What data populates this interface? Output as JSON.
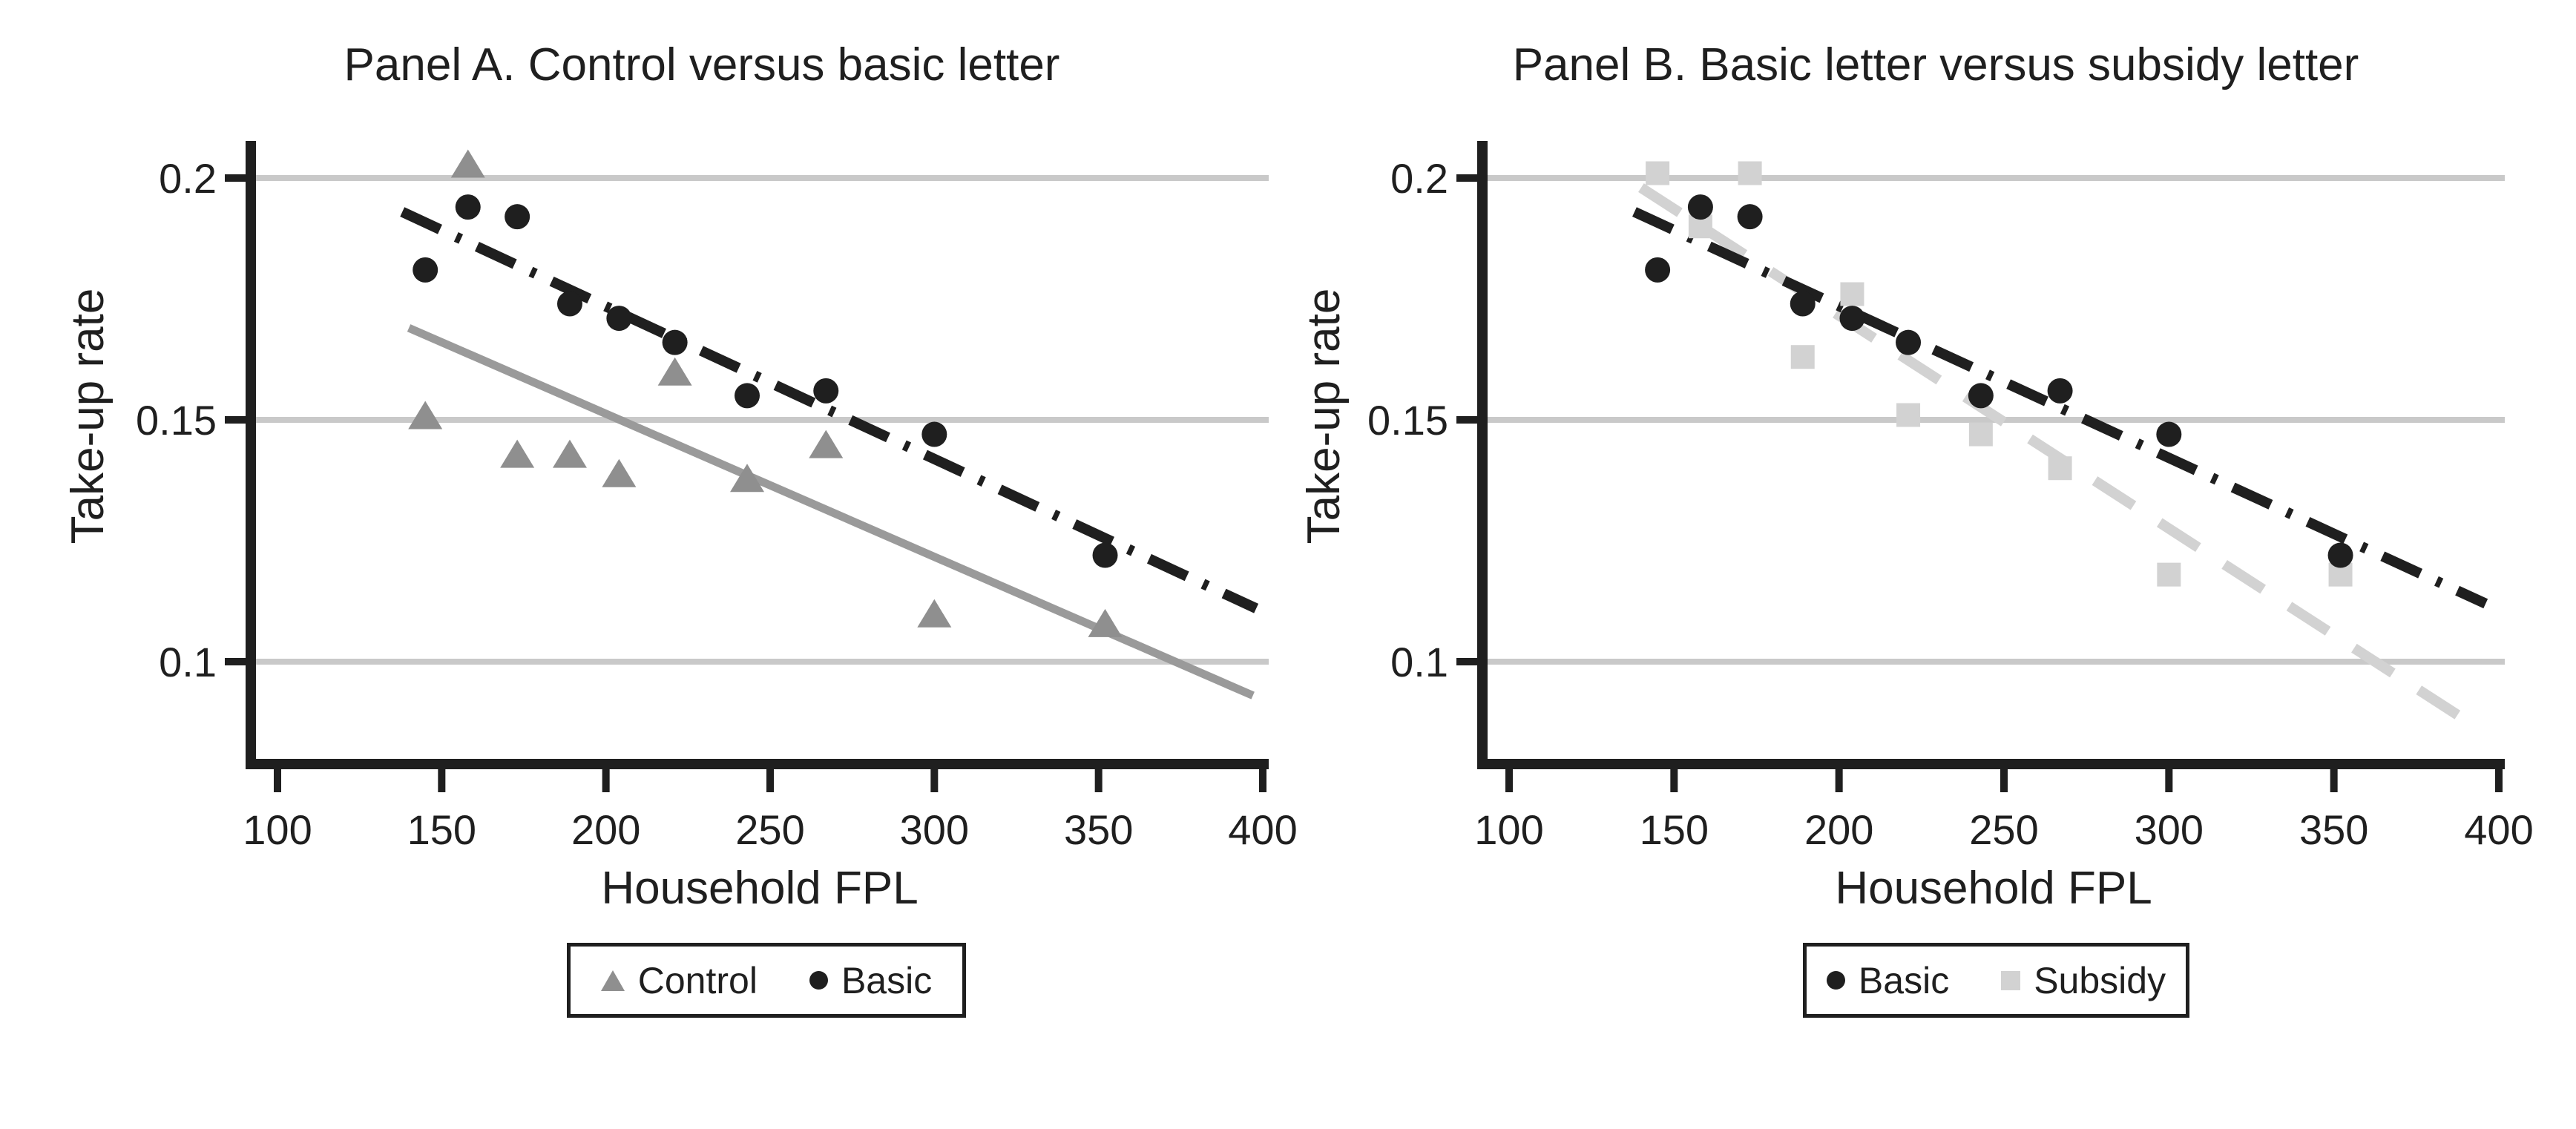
{
  "figure": {
    "background": "#ffffff",
    "text_color": "#1f1f1f",
    "gridline_color": "#c9c9c9"
  },
  "chart_data": [
    {
      "type": "scatter",
      "panel": "A",
      "title": "Panel A. Control versus basic letter",
      "xlabel": "Household FPL",
      "ylabel": "Take-up rate",
      "x_ticks": [
        100,
        150,
        200,
        250,
        300,
        350,
        400
      ],
      "x_tick_labels": [
        "100",
        "150",
        "200",
        "250",
        "300",
        "350",
        "400"
      ],
      "y_ticks": [
        0.2,
        0.15,
        0.1
      ],
      "y_tick_labels": [
        "0.2",
        "0.15",
        "0.1"
      ],
      "xlim": [
        92,
        402
      ],
      "ylim": [
        0.079,
        0.208
      ],
      "grid": "horizontal",
      "legend_position": "bottom-center",
      "x": [
        145,
        158,
        173,
        189,
        204,
        221,
        243,
        267,
        300,
        352
      ],
      "series": [
        {
          "name": "Control",
          "marker": "triangle",
          "color": "#8f8f8f",
          "values": [
            0.151,
            0.203,
            0.143,
            0.143,
            0.139,
            0.16,
            0.138,
            0.145,
            0.11,
            0.108
          ]
        },
        {
          "name": "Basic",
          "marker": "circle",
          "color": "#1f1f1f",
          "values": [
            0.181,
            0.194,
            0.192,
            0.174,
            0.171,
            0.166,
            0.155,
            0.156,
            0.147,
            0.122
          ]
        }
      ],
      "fit_lines": [
        {
          "series": "Control",
          "style": "solid",
          "color": "#9a9a9a",
          "x": [
            140,
            397
          ],
          "y": [
            0.169,
            0.093
          ]
        },
        {
          "series": "Basic",
          "style": "dashdot",
          "color": "#1f1f1f",
          "x": [
            138,
            398
          ],
          "y": [
            0.193,
            0.111
          ]
        }
      ],
      "legend": [
        {
          "label": "Control",
          "marker": "triangle",
          "color": "#8f8f8f"
        },
        {
          "label": "Basic",
          "marker": "circle",
          "color": "#1f1f1f"
        }
      ]
    },
    {
      "type": "scatter",
      "panel": "B",
      "title": "Panel B. Basic letter versus subsidy letter",
      "xlabel": "Household FPL",
      "ylabel": "Take-up rate",
      "x_ticks": [
        100,
        150,
        200,
        250,
        300,
        350,
        400
      ],
      "x_tick_labels": [
        "100",
        "150",
        "200",
        "250",
        "300",
        "350",
        "400"
      ],
      "y_ticks": [
        0.2,
        0.15,
        0.1
      ],
      "y_tick_labels": [
        "0.2",
        "0.15",
        "0.1"
      ],
      "xlim": [
        92,
        402
      ],
      "ylim": [
        0.079,
        0.208
      ],
      "grid": "horizontal",
      "legend_position": "bottom-center",
      "x": [
        145,
        158,
        173,
        189,
        204,
        221,
        243,
        267,
        300,
        352
      ],
      "series": [
        {
          "name": "Subsidy",
          "marker": "square",
          "color": "#d2d2d2",
          "values": [
            0.201,
            0.19,
            0.201,
            0.163,
            0.176,
            0.151,
            0.147,
            0.14,
            0.118,
            0.118
          ]
        },
        {
          "name": "Basic",
          "marker": "circle",
          "color": "#1f1f1f",
          "values": [
            0.181,
            0.194,
            0.192,
            0.174,
            0.171,
            0.166,
            0.155,
            0.156,
            0.147,
            0.122
          ]
        }
      ],
      "fit_lines": [
        {
          "series": "Subsidy",
          "style": "dashed",
          "color": "#d2d2d2",
          "x": [
            140,
            392
          ],
          "y": [
            0.198,
            0.087
          ]
        },
        {
          "series": "Basic",
          "style": "dashdot",
          "color": "#1f1f1f",
          "x": [
            138,
            396
          ],
          "y": [
            0.193,
            0.112
          ]
        }
      ],
      "legend": [
        {
          "label": "Basic",
          "marker": "circle",
          "color": "#1f1f1f"
        },
        {
          "label": "Subsidy",
          "marker": "square",
          "color": "#d2d2d2"
        }
      ]
    }
  ]
}
